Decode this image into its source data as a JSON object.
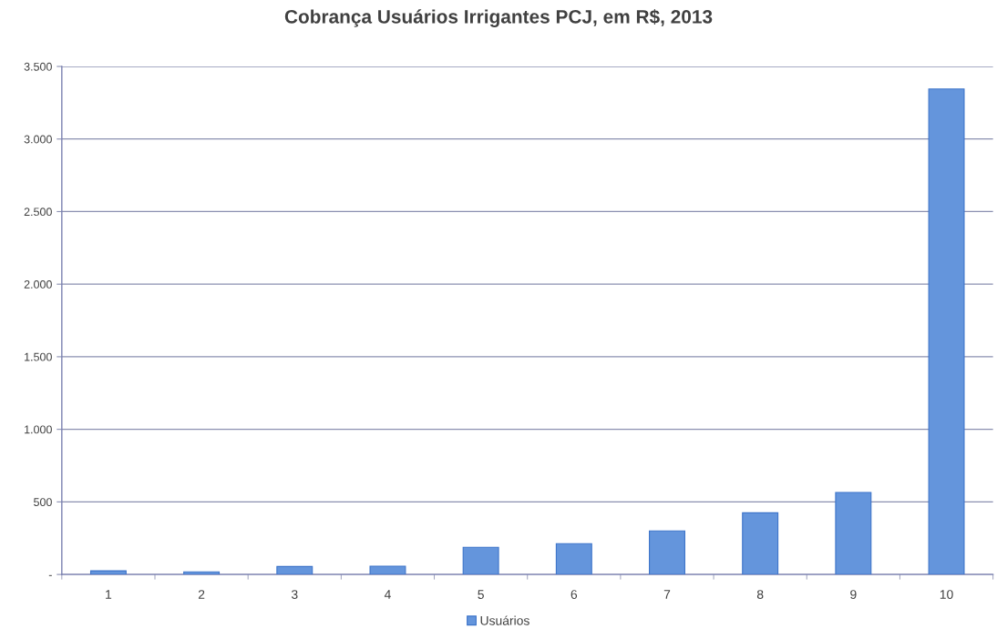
{
  "chart_data": {
    "type": "bar",
    "title": "Cobrança Usuários Irrigantes PCJ, em R$, 2013",
    "categories": [
      "1",
      "2",
      "3",
      "4",
      "5",
      "6",
      "7",
      "8",
      "9",
      "10"
    ],
    "series": [
      {
        "name": "Usuários",
        "color": "#6495dc",
        "values": [
          25,
          18,
          55,
          57,
          187,
          212,
          300,
          425,
          565,
          3345
        ]
      }
    ],
    "ylim": [
      0,
      3500
    ],
    "yticks": [
      {
        "value": 0,
        "label": "-"
      },
      {
        "value": 500,
        "label": "500"
      },
      {
        "value": 1000,
        "label": "1.000"
      },
      {
        "value": 1500,
        "label": "1.500"
      },
      {
        "value": 2000,
        "label": "2.000"
      },
      {
        "value": 2500,
        "label": "2.500"
      },
      {
        "value": 3000,
        "label": "3.000"
      },
      {
        "value": 3500,
        "label": "3.500"
      }
    ],
    "grid": "y",
    "legend": "bottom"
  }
}
